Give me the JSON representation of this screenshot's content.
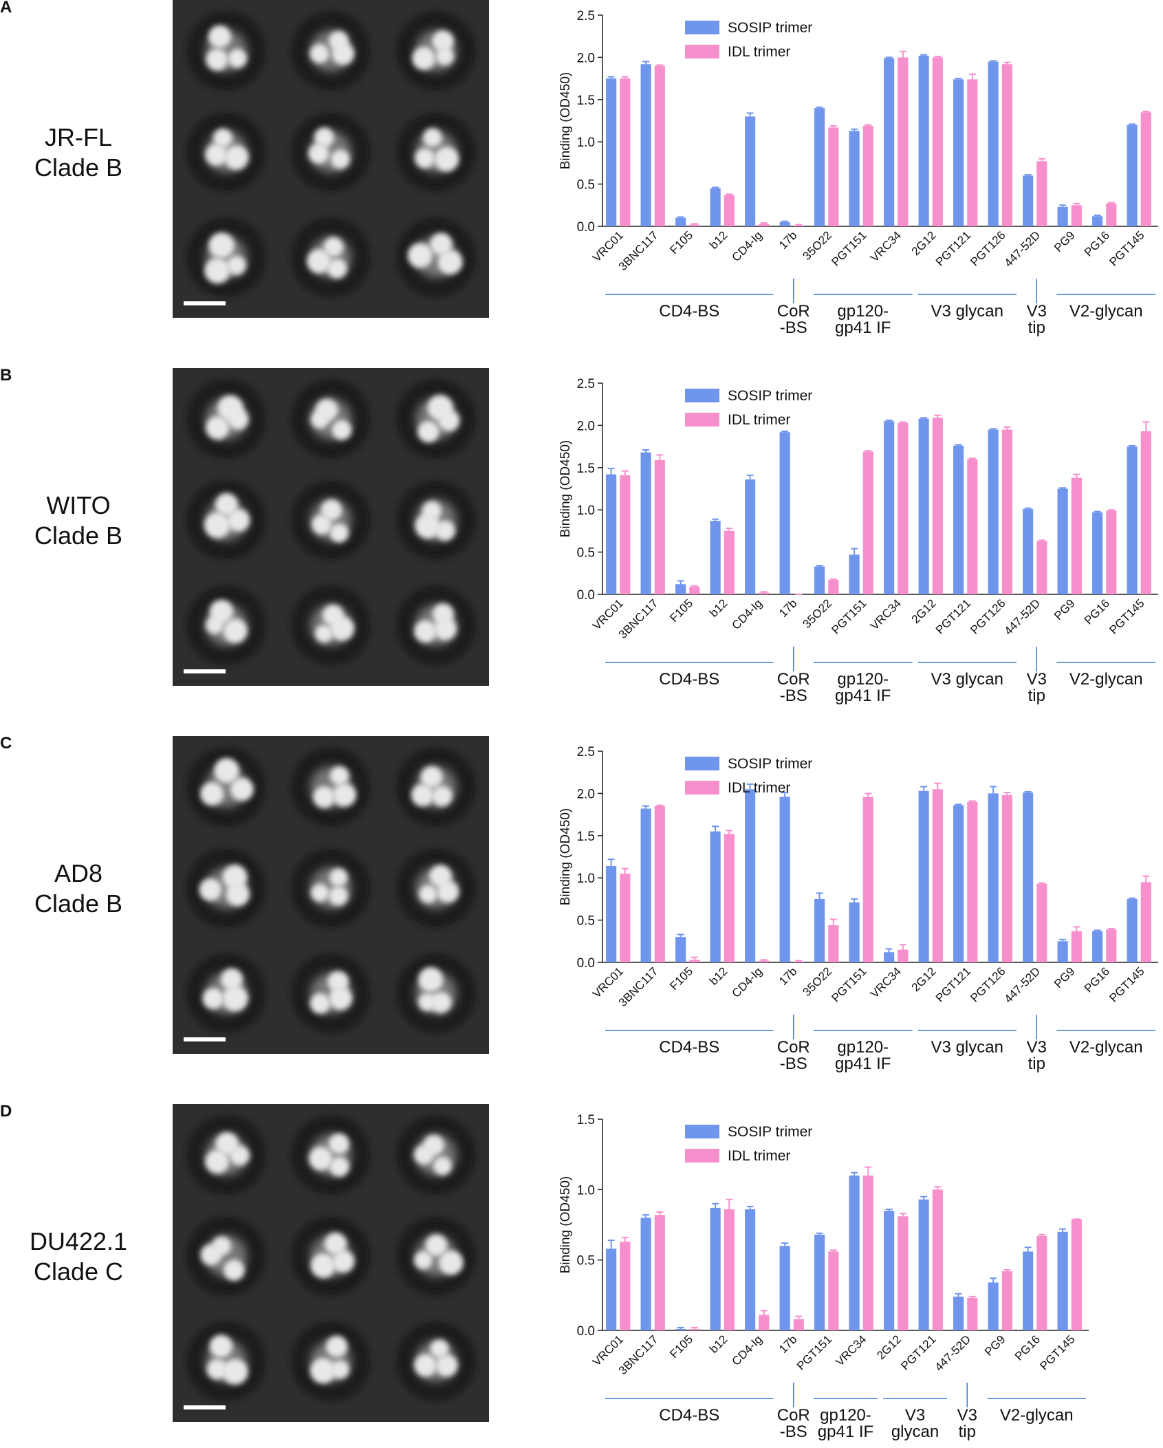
{
  "panels": [
    {
      "label": "A",
      "strain_lines": [
        "JR-FL",
        "Clade B"
      ]
    },
    {
      "label": "B",
      "strain_lines": [
        "WITO",
        "Clade B"
      ]
    },
    {
      "label": "C",
      "strain_lines": [
        "AD8",
        "Clade B"
      ]
    },
    {
      "label": "D",
      "strain_lines": [
        "DU422.1",
        "Clade C"
      ]
    }
  ],
  "chart_data": [
    {
      "type": "bar",
      "y_label": "Binding (OD450)",
      "ylim": [
        0,
        2.5
      ],
      "yticks": [
        {
          "value": 0,
          "label": "0.0"
        },
        0.5,
        {
          "value": 1,
          "label": "1.0"
        },
        1.5,
        {
          "value": 2,
          "label": "2.0"
        },
        2.5
      ],
      "categories": [
        "VRC01",
        "3BNC117",
        "F105",
        "b12",
        "CD4-Ig",
        "17b",
        "35O22",
        "PGT151",
        "VRC34",
        "2G12",
        "PGT121",
        "PGT126",
        "447-52D",
        "PG9",
        "PG16",
        "PGT145"
      ],
      "series": [
        {
          "name": "SOSIP trimer",
          "color": "#6f95ec",
          "values": [
            1.75,
            1.92,
            0.1,
            0.45,
            1.3,
            0.05,
            1.4,
            1.13,
            1.99,
            2.02,
            1.74,
            1.95,
            0.6,
            0.23,
            0.12,
            1.2
          ],
          "errors": [
            0.02,
            0.03,
            0.01,
            0.01,
            0.04,
            0.01,
            0.01,
            0.02,
            0.01,
            0.01,
            0.01,
            0.01,
            0.01,
            0.02,
            0.01,
            0.01
          ]
        },
        {
          "name": "IDL trimer",
          "color": "#f78fcd",
          "values": [
            1.75,
            1.9,
            0.02,
            0.37,
            0.03,
            0.01,
            1.17,
            1.19,
            2.0,
            2.0,
            1.74,
            1.92,
            0.77,
            0.25,
            0.27,
            1.35
          ],
          "errors": [
            0.02,
            0.01,
            0.01,
            0.01,
            0.01,
            0.01,
            0.02,
            0.01,
            0.07,
            0.01,
            0.06,
            0.02,
            0.03,
            0.02,
            0.01,
            0.01
          ]
        }
      ],
      "groups": [
        {
          "lines": [
            "CD4-BS"
          ],
          "span": [
            0,
            4
          ]
        },
        {
          "lines": [
            "CoR",
            "-BS"
          ],
          "span": [
            5,
            5
          ]
        },
        {
          "lines": [
            "gp120-",
            "gp41 IF"
          ],
          "span": [
            6,
            8
          ]
        },
        {
          "lines": [
            "V3 glycan"
          ],
          "span": [
            9,
            11
          ]
        },
        {
          "lines": [
            "V3",
            "tip"
          ],
          "span": [
            12,
            12
          ]
        },
        {
          "lines": [
            "V2-glycan"
          ],
          "span": [
            13,
            15
          ]
        }
      ]
    },
    {
      "type": "bar",
      "y_label": "Binding (OD450)",
      "ylim": [
        0,
        2.5
      ],
      "yticks": [
        {
          "value": 0,
          "label": "0.0"
        },
        0.5,
        {
          "value": 1,
          "label": "1.0"
        },
        1.5,
        {
          "value": 2,
          "label": "2.0"
        },
        2.5
      ],
      "categories": [
        "VRC01",
        "3BNC117",
        "F105",
        "b12",
        "CD4-Ig",
        "17b",
        "35O22",
        "PGT151",
        "VRC34",
        "2G12",
        "PGT121",
        "PGT126",
        "447-52D",
        "PG9",
        "PG16",
        "PGT145"
      ],
      "series": [
        {
          "name": "SOSIP trimer",
          "color": "#6f95ec",
          "values": [
            1.42,
            1.68,
            0.12,
            0.87,
            1.36,
            1.92,
            0.33,
            0.47,
            2.05,
            2.08,
            1.76,
            1.95,
            1.01,
            1.25,
            0.97,
            1.75
          ],
          "errors": [
            0.07,
            0.03,
            0.04,
            0.02,
            0.05,
            0.01,
            0.01,
            0.07,
            0.01,
            0.01,
            0.01,
            0.01,
            0.01,
            0.01,
            0.01,
            0.01
          ]
        },
        {
          "name": "IDL trimer",
          "color": "#f78fcd",
          "values": [
            1.41,
            1.59,
            0.09,
            0.75,
            0.02,
            0,
            0.17,
            1.69,
            2.03,
            2.09,
            1.6,
            1.95,
            0.63,
            1.38,
            0.99,
            1.93
          ],
          "errors": [
            0.05,
            0.06,
            0.01,
            0.03,
            0.01,
            0,
            0.01,
            0.01,
            0.01,
            0.03,
            0.01,
            0.03,
            0.01,
            0.04,
            0.01,
            0.11
          ]
        }
      ],
      "groups": [
        {
          "lines": [
            "CD4-BS"
          ],
          "span": [
            0,
            4
          ]
        },
        {
          "lines": [
            "CoR",
            "-BS"
          ],
          "span": [
            5,
            5
          ]
        },
        {
          "lines": [
            "gp120-",
            "gp41 IF"
          ],
          "span": [
            6,
            8
          ]
        },
        {
          "lines": [
            "V3 glycan"
          ],
          "span": [
            9,
            11
          ]
        },
        {
          "lines": [
            "V3",
            "tip"
          ],
          "span": [
            12,
            12
          ]
        },
        {
          "lines": [
            "V2-glycan"
          ],
          "span": [
            13,
            15
          ]
        }
      ]
    },
    {
      "type": "bar",
      "y_label": "Binding (OD450)",
      "ylim": [
        0,
        2.5
      ],
      "yticks": [
        {
          "value": 0,
          "label": "0.0"
        },
        0.5,
        {
          "value": 1,
          "label": "1.0"
        },
        1.5,
        {
          "value": 2,
          "label": "2.0"
        },
        2.5
      ],
      "categories": [
        "VRC01",
        "3BNC117",
        "F105",
        "b12",
        "CD4-Ig",
        "17b",
        "35O22",
        "PGT151",
        "VRC34",
        "2G12",
        "PGT121",
        "PGT126",
        "447-52D",
        "PG9",
        "PG16",
        "PGT145"
      ],
      "series": [
        {
          "name": "SOSIP trimer",
          "color": "#6f95ec",
          "values": [
            1.14,
            1.82,
            0.3,
            1.55,
            2.05,
            1.96,
            0.75,
            0.71,
            0.12,
            2.03,
            1.86,
            2.0,
            2.01,
            0.25,
            0.37,
            0.75
          ],
          "errors": [
            0.08,
            0.03,
            0.03,
            0.06,
            0.06,
            0.05,
            0.07,
            0.04,
            0.04,
            0.05,
            0.01,
            0.08,
            0.01,
            0.02,
            0.01,
            0.01
          ]
        },
        {
          "name": "IDL trimer",
          "color": "#f78fcd",
          "values": [
            1.05,
            1.85,
            0.03,
            1.52,
            0.02,
            0.01,
            0.44,
            1.96,
            0.15,
            2.05,
            1.9,
            1.98,
            0.93,
            0.37,
            0.39,
            0.95
          ],
          "errors": [
            0.06,
            0.01,
            0.03,
            0.04,
            0.01,
            0.01,
            0.07,
            0.04,
            0.06,
            0.07,
            0.01,
            0.03,
            0.01,
            0.05,
            0.01,
            0.07
          ]
        }
      ],
      "groups": [
        {
          "lines": [
            "CD4-BS"
          ],
          "span": [
            0,
            4
          ]
        },
        {
          "lines": [
            "CoR",
            "-BS"
          ],
          "span": [
            5,
            5
          ]
        },
        {
          "lines": [
            "gp120-",
            "gp41 IF"
          ],
          "span": [
            6,
            8
          ]
        },
        {
          "lines": [
            "V3 glycan"
          ],
          "span": [
            9,
            11
          ]
        },
        {
          "lines": [
            "V3",
            "tip"
          ],
          "span": [
            12,
            12
          ]
        },
        {
          "lines": [
            "V2-glycan"
          ],
          "span": [
            13,
            15
          ]
        }
      ]
    },
    {
      "type": "bar",
      "y_label": "Binding (OD450)",
      "ylim": [
        0,
        1.5
      ],
      "yticks": [
        {
          "value": 0,
          "label": "0.0"
        },
        0.5,
        {
          "value": 1,
          "label": "1.0"
        },
        1.5
      ],
      "categories": [
        "VRC01",
        "3BNC117",
        "F105",
        "b12",
        "CD4-Ig",
        "17b",
        "PGT151",
        "VRC34",
        "2G12",
        "PGT121",
        "447-52D",
        "PG9",
        "PG16",
        "PGT145"
      ],
      "series": [
        {
          "name": "SOSIP trimer",
          "color": "#6f95ec",
          "values": [
            0.58,
            0.8,
            0.01,
            0.87,
            0.86,
            0.6,
            0.68,
            1.1,
            0.85,
            0.93,
            0.24,
            0.34,
            0.56,
            0.7
          ],
          "errors": [
            0.06,
            0.02,
            0.01,
            0.03,
            0.02,
            0.02,
            0.01,
            0.02,
            0.01,
            0.02,
            0.02,
            0.03,
            0.03,
            0.02
          ]
        },
        {
          "name": "IDL trimer",
          "color": "#f78fcd",
          "values": [
            0.63,
            0.82,
            0.01,
            0.86,
            0.11,
            0.08,
            0.56,
            1.1,
            0.81,
            1.0,
            0.23,
            0.42,
            0.67,
            0.79
          ],
          "errors": [
            0.03,
            0.02,
            0.01,
            0.07,
            0.03,
            0.02,
            0.01,
            0.06,
            0.02,
            0.02,
            0.01,
            0.01,
            0.01,
            0
          ]
        }
      ],
      "groups": [
        {
          "lines": [
            "CD4-BS"
          ],
          "span": [
            0,
            4
          ]
        },
        {
          "lines": [
            "CoR",
            "-BS"
          ],
          "span": [
            5,
            5
          ]
        },
        {
          "lines": [
            "gp120-",
            "gp41 IF"
          ],
          "span": [
            6,
            7
          ]
        },
        {
          "lines": [
            "V3",
            "glycan"
          ],
          "span": [
            8,
            9
          ]
        },
        {
          "lines": [
            "V3",
            "tip"
          ],
          "span": [
            10,
            10
          ]
        },
        {
          "lines": [
            "V2-glycan"
          ],
          "span": [
            11,
            13
          ]
        }
      ]
    }
  ]
}
